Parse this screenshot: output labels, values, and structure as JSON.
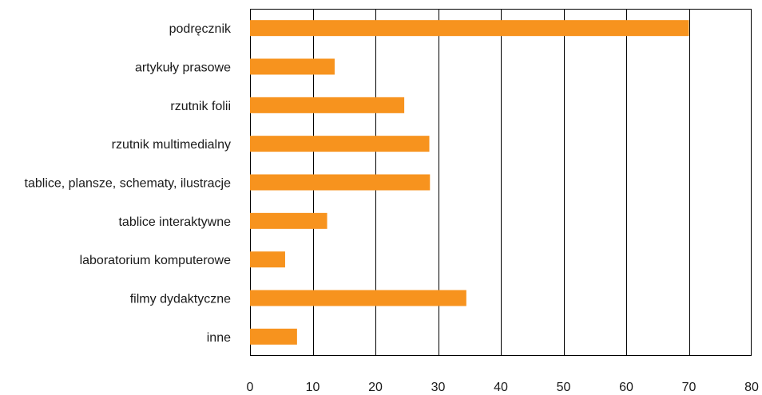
{
  "chart_data": {
    "type": "bar",
    "orientation": "horizontal",
    "categories": [
      "podręcznik",
      "artykuły prasowe",
      "rzutnik folii",
      "rzutnik multimedialny",
      "tablice, plansze, schematy, ilustracje",
      "tablice interaktywne",
      "laboratorium komputerowe",
      "filmy dydaktyczne",
      "inne"
    ],
    "values": [
      70,
      13.5,
      24.6,
      28.6,
      28.7,
      12.3,
      5.6,
      34.5,
      7.5
    ],
    "xlim": [
      0,
      80
    ],
    "xticks": [
      "0",
      "10",
      "20",
      "30",
      "40",
      "50",
      "60",
      "70",
      "80"
    ],
    "title": "",
    "xlabel": "",
    "ylabel": "",
    "grid": true,
    "bar_color": "#F7931E"
  }
}
